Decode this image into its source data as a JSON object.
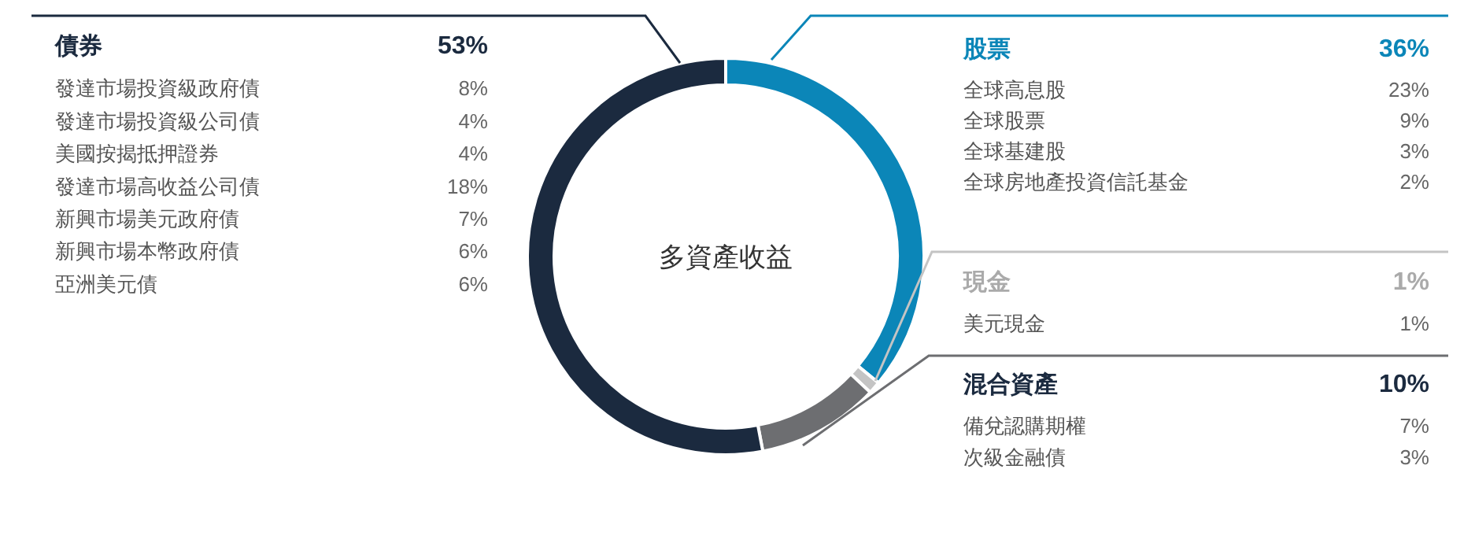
{
  "chart_data": {
    "type": "donut",
    "title": "多資產收益",
    "categories": [
      "股票",
      "現金",
      "混合資產",
      "債券"
    ],
    "values": [
      36,
      1,
      10,
      53
    ],
    "value_labels": [
      "36%",
      "1%",
      "10%",
      "53%"
    ],
    "colors": [
      "#0b86b8",
      "#c4c4c4",
      "#6d6e71",
      "#1b2a3f"
    ],
    "annotations": [
      {
        "text": "全球高息股",
        "x": "股票"
      },
      {
        "text": "23%",
        "x": "股票"
      },
      {
        "text": "全球股票",
        "x": "股票"
      },
      {
        "text": "9%",
        "x": "股票"
      },
      {
        "text": "全球基建股",
        "x": "股票"
      },
      {
        "text": "3%",
        "x": "股票"
      },
      {
        "text": "全球房地產投資信託基金",
        "x": "股票"
      },
      {
        "text": "2%",
        "x": "股票"
      },
      {
        "text": "美元現金",
        "x": "現金"
      },
      {
        "text": "1%",
        "x": "現金"
      },
      {
        "text": "備兌認購期權",
        "x": "混合資產"
      },
      {
        "text": "7%",
        "x": "混合資產"
      },
      {
        "text": "次級金融債",
        "x": "混合資產"
      },
      {
        "text": "3%",
        "x": "混合資產"
      },
      {
        "text": "發達市場投資級政府債",
        "x": "債券"
      },
      {
        "text": "8%",
        "x": "債券"
      },
      {
        "text": "發達市場投資級公司債",
        "x": "債券"
      },
      {
        "text": "4%",
        "x": "債券"
      },
      {
        "text": "美國按揭抵押證券",
        "x": "債券"
      },
      {
        "text": "4%",
        "x": "債券"
      },
      {
        "text": "發達市場高收益公司債",
        "x": "債券"
      },
      {
        "text": "18%",
        "x": "債券"
      },
      {
        "text": "新興市場美元政府債",
        "x": "債券"
      },
      {
        "text": "7%",
        "x": "債券"
      },
      {
        "text": "新興市場本幣政府債",
        "x": "債券"
      },
      {
        "text": "6%",
        "x": "債券"
      },
      {
        "text": "亞洲美元債",
        "x": "債券"
      },
      {
        "text": "6%",
        "x": "債券"
      }
    ]
  }
}
